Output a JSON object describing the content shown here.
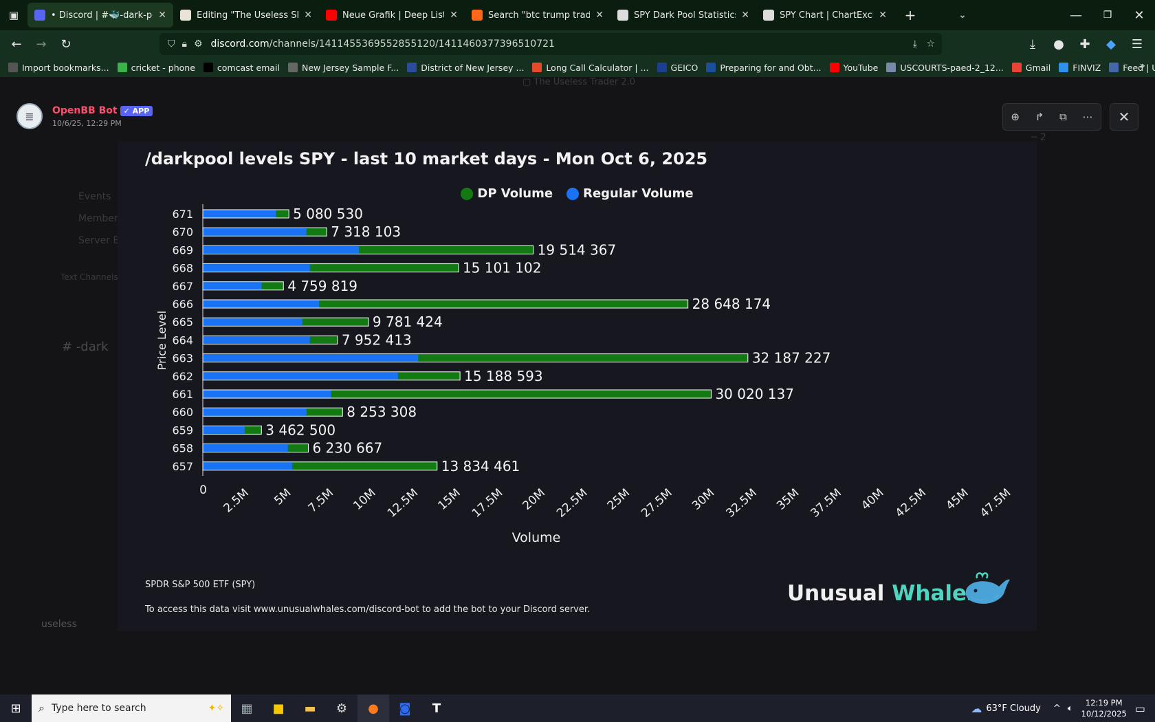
{
  "browser": {
    "tabs": [
      {
        "label": "• Discord | #🐳-dark-pool | The",
        "color": "#5865f2",
        "active": true
      },
      {
        "label": "Editing \"The Useless SPY report",
        "color": "#e9e4d5",
        "active": false
      },
      {
        "label": "Neue Grafik | Deep Listening",
        "color": "#ff0000",
        "active": false
      },
      {
        "label": "Search \"btc trump trade\" on Sub",
        "color": "#ff6719",
        "active": false
      },
      {
        "label": "SPY Dark Pool Statistics | ChartE",
        "color": "#dddddd",
        "active": false
      },
      {
        "label": "SPY Chart | ChartExchange",
        "color": "#dddddd",
        "active": false
      }
    ],
    "url_domain": "discord.com",
    "url_path": "/channels/1411455369552855120/1411460377396510721",
    "bookmarks": [
      {
        "label": "Import bookmarks...",
        "color": "#555555"
      },
      {
        "label": "cricket - phone",
        "color": "#3cb34a"
      },
      {
        "label": "comcast email",
        "color": "#000000"
      },
      {
        "label": "New Jersey Sample F...",
        "color": "#666666"
      },
      {
        "label": "District of New Jersey ...",
        "color": "#2b4c9c"
      },
      {
        "label": "Long Call Calculator | ...",
        "color": "#e54b2b"
      },
      {
        "label": "GEICO",
        "color": "#1c3f94"
      },
      {
        "label": "Preparing for and Obt...",
        "color": "#1a4f9c"
      },
      {
        "label": "YouTube",
        "color": "#ff0000"
      },
      {
        "label": "USCOURTS-paed-2_12...",
        "color": "#7788aa"
      },
      {
        "label": "Gmail",
        "color": "#ea4335"
      },
      {
        "label": "FINVIZ",
        "color": "#2f91ef"
      },
      {
        "label": "Feed | Utradea",
        "color": "#4466aa"
      }
    ]
  },
  "message": {
    "username": "OpenBB Bot",
    "badge": "✓ APP",
    "timestamp": "10/6/25, 12:29 PM"
  },
  "card": {
    "title": "/darkpool levels SPY - last 10 market days - Mon Oct 6, 2025",
    "footer_name": "SPDR S&P 500 ETF (SPY)",
    "footer_note": "To access this data visit www.unusualwhales.com/discord-bot to add the bot to your Discord server.",
    "logo_word1": "Unusual",
    "logo_word2": "Whales"
  },
  "chart_data": {
    "type": "bar",
    "orientation": "horizontal",
    "stacked": true,
    "ylabel": "Price Level",
    "xlabel": "Volume",
    "xlim": [
      0,
      47500000
    ],
    "x_ticks": [
      "0",
      "2.5M",
      "5M",
      "7.5M",
      "10M",
      "12.5M",
      "15M",
      "17.5M",
      "20M",
      "22.5M",
      "25M",
      "27.5M",
      "30M",
      "32.5M",
      "35M",
      "37.5M",
      "40M",
      "42.5M",
      "45M",
      "47.5M"
    ],
    "legend_position": "top-center",
    "categories": [
      "671",
      "670",
      "669",
      "668",
      "667",
      "666",
      "665",
      "664",
      "663",
      "662",
      "661",
      "660",
      "659",
      "658",
      "657"
    ],
    "totals": [
      5080530,
      7318103,
      19514367,
      15101102,
      4759819,
      28648174,
      9781424,
      7952413,
      32187227,
      15188593,
      30020137,
      8253308,
      3462500,
      6230667,
      13834461
    ],
    "total_labels": [
      "5 080 530",
      "7 318 103",
      "19 514 367",
      "15 101 102",
      "4 759 819",
      "28 648 174",
      "9 781 424",
      "7 952 413",
      "32 187 227",
      "15 188 593",
      "30 020 137",
      "8 253 308",
      "3 462 500",
      "6 230 667",
      "13 834 461"
    ],
    "series": [
      {
        "name": "Regular Volume",
        "color": "#1a73f5",
        "values": [
          4300000,
          6100000,
          9200000,
          6300000,
          3450000,
          6850000,
          5850000,
          6300000,
          12700000,
          11500000,
          7550000,
          6100000,
          2450000,
          5000000,
          5250000
        ]
      },
      {
        "name": "DP Volume",
        "color": "#137a13",
        "values": [
          780530,
          1218103,
          10314367,
          8801102,
          1309819,
          21798174,
          3931424,
          1652413,
          19487227,
          3688593,
          22470137,
          2153308,
          1012500,
          1230667,
          8584461
        ]
      }
    ]
  },
  "taskbar": {
    "search_placeholder": "Type here to search",
    "weather": "63°F  Cloudy",
    "time": "12:19 PM",
    "date": "10/12/2025"
  }
}
